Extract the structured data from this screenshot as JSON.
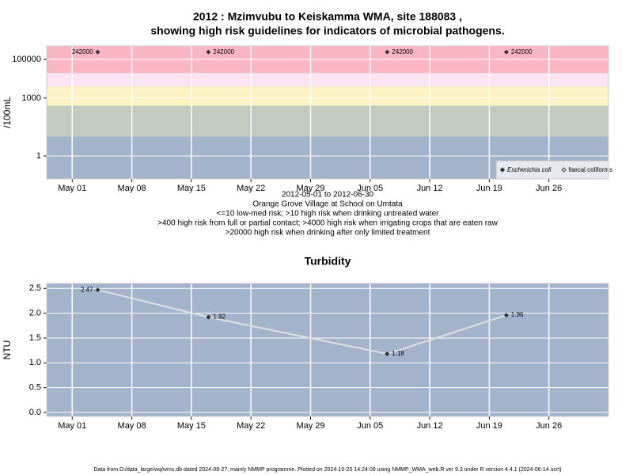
{
  "chart_data": [
    {
      "type": "scatter",
      "title": "2012 : Mzimvubu to Keiskamma WMA, site 188083 ,",
      "subtitle": "showing high risk guidelines for indicators of microbial pathogens.",
      "y_label": "/100mL",
      "log_y": true,
      "grid": true,
      "legend": "bottom-right",
      "background": "#a3b3cb",
      "notes": [
        "2012-05-01 to 2012-06-30",
        "Orange Grove Village at School on Umtata",
        "<=10 low-med risk; >10 high risk when drinking untreated water",
        ">400 high risk from full or partial contact; >4000 high risk when irrigating crops that are eaten raw",
        ">20000 high risk when drinking after only limited treatment"
      ],
      "bands": [
        {
          "from": 0.065,
          "to": 10,
          "color": "#a3b3cb"
        },
        {
          "from": 10,
          "to": 400,
          "color": "#c2cbc0"
        },
        {
          "from": 400,
          "to": 4000,
          "color": "#fbf3c4"
        },
        {
          "from": 4000,
          "to": 20000,
          "color": "#fbe3f3"
        },
        {
          "from": 20000,
          "to": 500000,
          "color": "#fbb6c4"
        }
      ],
      "x": [
        "2012-05-04",
        "2012-05-17",
        "2012-06-07",
        "2012-06-21"
      ],
      "series": [
        {
          "name": "Escherichia coli",
          "color": "#333333",
          "values": [
            242000,
            242000,
            242000,
            242000
          ]
        },
        {
          "name": "faecal coliforms",
          "color": "#333333",
          "values": [
            null,
            null,
            null,
            null
          ]
        }
      ],
      "xlim": [
        "2012-04-28",
        "2012-07-03"
      ],
      "xticks": [
        {
          "value": "2012-05-01",
          "label": "May 01"
        },
        {
          "value": "2012-05-08",
          "label": "May 08"
        },
        {
          "value": "2012-05-15",
          "label": "May 15"
        },
        {
          "value": "2012-05-22",
          "label": "May 22"
        },
        {
          "value": "2012-05-29",
          "label": "May 29"
        },
        {
          "value": "2012-06-05",
          "label": "Jun 05"
        },
        {
          "value": "2012-06-12",
          "label": "Jun 12"
        },
        {
          "value": "2012-06-19",
          "label": "Jun 19"
        },
        {
          "value": "2012-06-26",
          "label": "Jun 26"
        }
      ],
      "ylim": [
        0.065,
        500000
      ],
      "yticks": [
        1,
        1000,
        100000
      ]
    },
    {
      "type": "line",
      "title": "Turbidity",
      "y_label": "NTU",
      "grid": true,
      "background": "#a3b3cb",
      "x": [
        "2012-05-04",
        "2012-05-17",
        "2012-06-07",
        "2012-06-21"
      ],
      "series": [
        {
          "color": "#e0e0e0",
          "values": [
            2.47,
            1.92,
            1.18,
            1.96
          ]
        }
      ],
      "xlim": [
        "2012-04-28",
        "2012-07-03"
      ],
      "xticks": [
        {
          "value": "2012-05-01",
          "label": "May 01"
        },
        {
          "value": "2012-05-08",
          "label": "May 08"
        },
        {
          "value": "2012-05-15",
          "label": "May 15"
        },
        {
          "value": "2012-05-22",
          "label": "May 22"
        },
        {
          "value": "2012-05-29",
          "label": "May 29"
        },
        {
          "value": "2012-06-05",
          "label": "Jun 05"
        },
        {
          "value": "2012-06-12",
          "label": "Jun 12"
        },
        {
          "value": "2012-06-19",
          "label": "Jun 19"
        },
        {
          "value": "2012-06-26",
          "label": "Jun 26"
        }
      ],
      "ylim": [
        -0.08,
        2.6
      ],
      "yticks": [
        2.5,
        {
          "value": 2,
          "label": "2.0"
        },
        1.5,
        {
          "value": 1,
          "label": "1.0"
        },
        0.5,
        {
          "value": 0,
          "label": "0.0"
        }
      ]
    }
  ],
  "footer": "Data from D:/data_large/wq/wms.db dated 2024-08-27, mainly NMMP programme. Plotted on 2024-10-25 14:24:09 using NMMP_WMA_web.R ver 9.3 under R version 4.4.1 (2024-06-14 ucrt)"
}
